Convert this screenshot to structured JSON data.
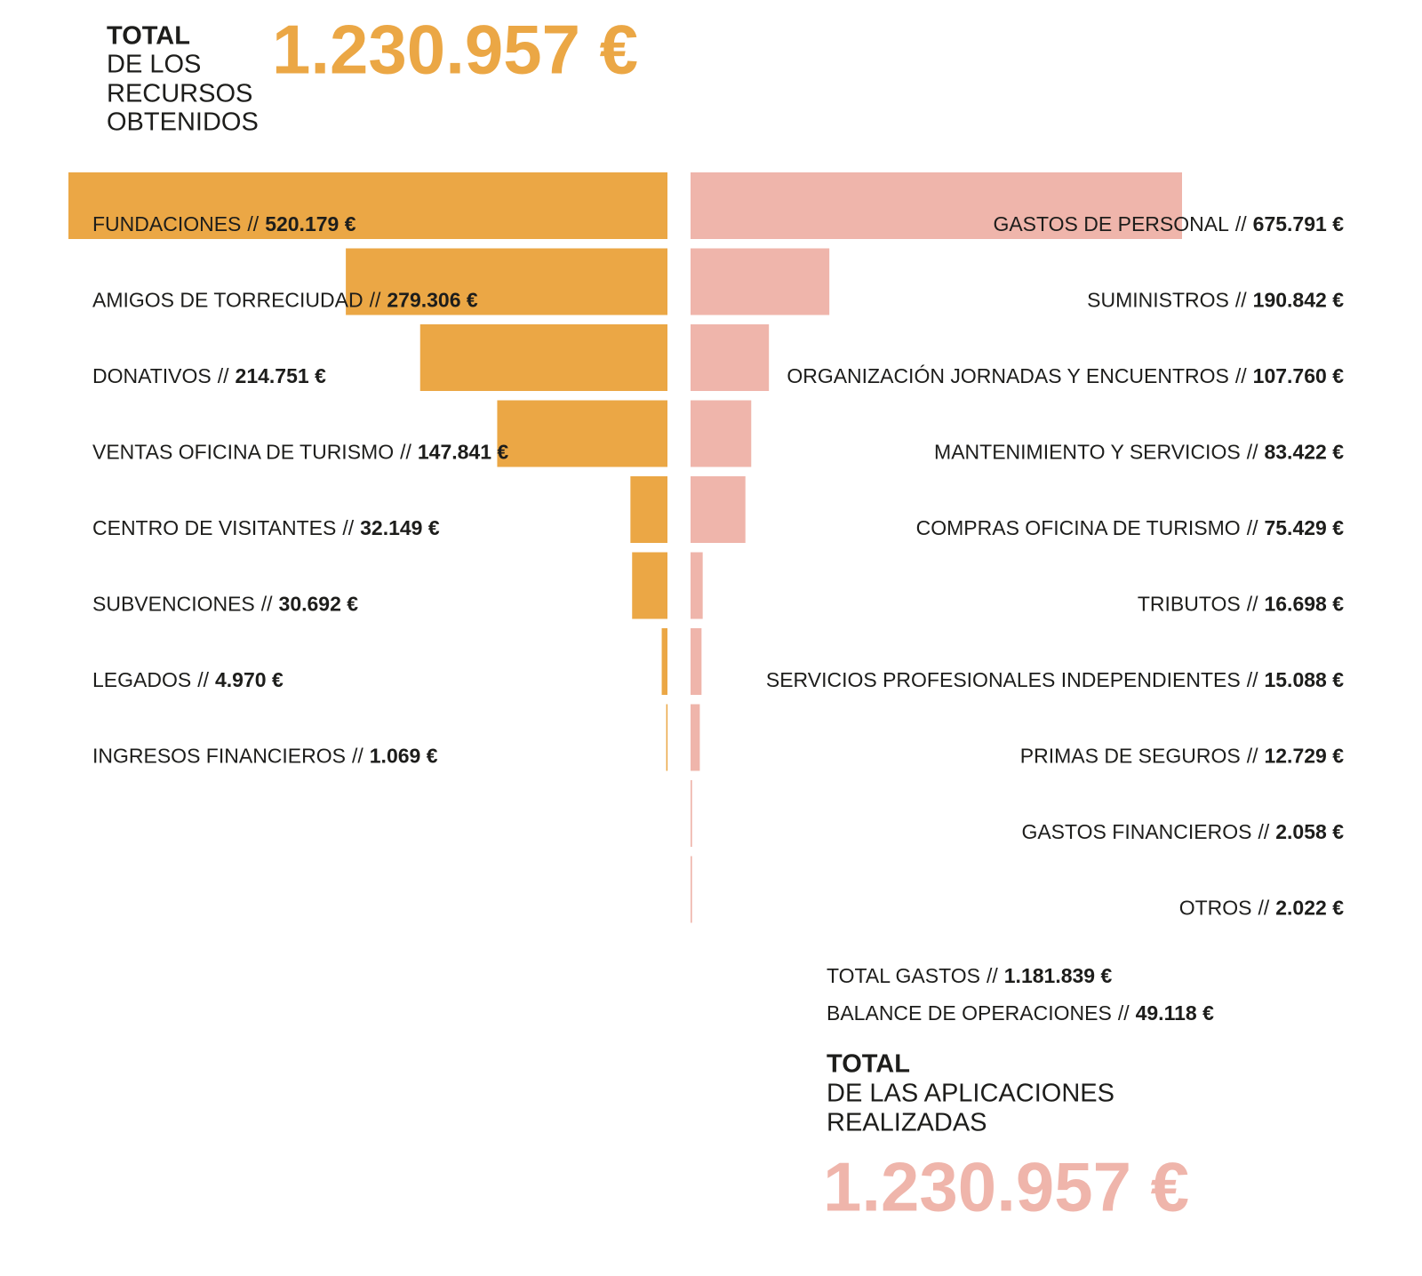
{
  "chart_data": [
    {
      "type": "bar",
      "side": "left",
      "color": "#eba745",
      "categories": [
        "FUNDACIONES",
        "AMIGOS DE TORRECIUDAD",
        "DONATIVOS",
        "VENTAS OFICINA DE TURISMO",
        "CENTRO DE VISITANTES",
        "SUBVENCIONES",
        "LEGADOS",
        "INGRESOS FINANCIEROS"
      ],
      "values": [
        520179,
        279306,
        214751,
        147841,
        32149,
        30692,
        4970,
        1069
      ],
      "value_labels": [
        "520.179 €",
        "279.306 €",
        "214.751 €",
        "147.841 €",
        "32.149 €",
        "30.692 €",
        "4.970 €",
        "1.069 €"
      ]
    },
    {
      "type": "bar",
      "side": "right",
      "color": "#efb5ab",
      "categories": [
        "GASTOS DE PERSONAL",
        "SUMINISTROS",
        "ORGANIZACIÓN JORNADAS Y ENCUENTROS",
        "MANTENIMIENTO Y SERVICIOS",
        "COMPRAS OFICINA DE TURISMO",
        "TRIBUTOS",
        "SERVICIOS PROFESIONALES INDEPENDIENTES",
        "PRIMAS DE SEGUROS",
        "GASTOS FINANCIEROS",
        "OTROS"
      ],
      "values": [
        675791,
        190842,
        107760,
        83422,
        75429,
        16698,
        15088,
        12729,
        2058,
        2022
      ],
      "value_labels": [
        "675.791 €",
        "190.842 €",
        "107.760 €",
        "83.422 €",
        "75.429 €",
        "16.698 €",
        "15.088 €",
        "12.729 €",
        "2.058 €",
        "2.022 €"
      ]
    }
  ],
  "separator": "//",
  "resources": {
    "heading": "TOTAL",
    "subtitle": [
      "DE LOS",
      "RECURSOS",
      "OBTENIDOS"
    ],
    "total": "1.230.957 €"
  },
  "applications": {
    "summary": [
      {
        "label": "TOTAL GASTOS",
        "value": "1.181.839 €"
      },
      {
        "label": "BALANCE DE OPERACIONES",
        "value": "49.118 €"
      }
    ],
    "heading": "TOTAL",
    "subtitle": [
      "DE LAS APLICACIONES",
      "REALIZADAS"
    ],
    "total": "1.230.957 €"
  }
}
